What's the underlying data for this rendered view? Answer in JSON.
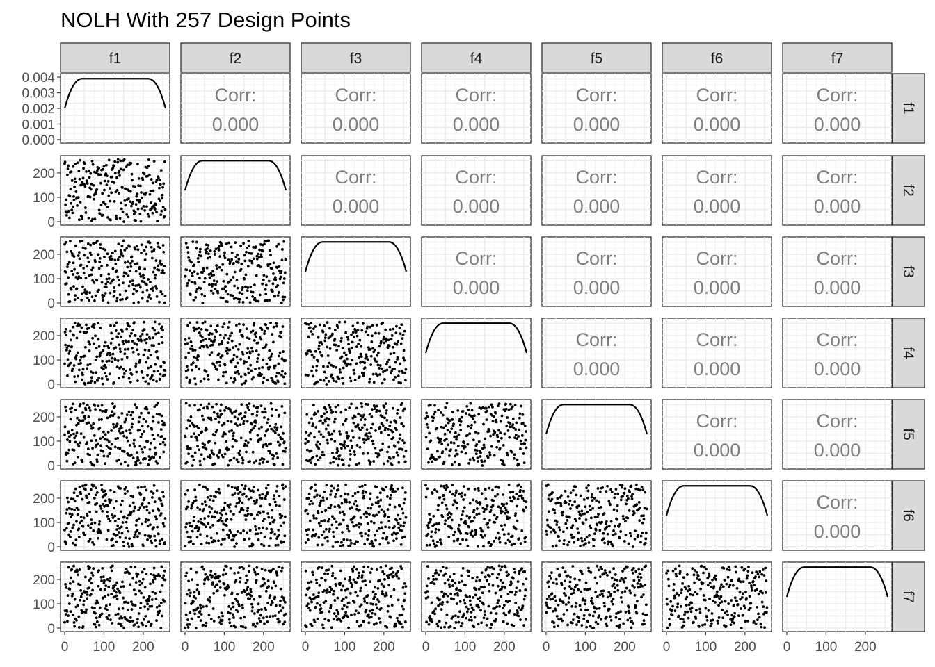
{
  "chart_data": {
    "type": "scatter",
    "title": "NOLH With 257 Design Points",
    "variables": [
      "f1",
      "f2",
      "f3",
      "f4",
      "f5",
      "f6",
      "f7"
    ],
    "n_points": 257,
    "xlim": [
      0,
      257
    ],
    "ylim": [
      0,
      257
    ],
    "x_ticks": [
      "0",
      "100",
      "200"
    ],
    "y_ticks": [
      "0",
      "100",
      "200"
    ],
    "density_ylim": [
      0,
      0.004
    ],
    "density_ticks": [
      "0.000",
      "0.001",
      "0.002",
      "0.003",
      "0.004"
    ],
    "density_plateau": 0.0039,
    "density_edge": 0.002,
    "corr_label": "Corr:",
    "corr_value": "0.000",
    "grid": true,
    "diagonal": "density",
    "lower": "scatter",
    "upper": "correlation"
  }
}
